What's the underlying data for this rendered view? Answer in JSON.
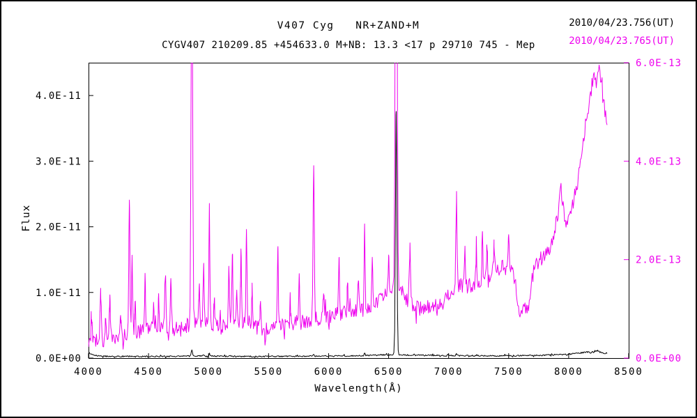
{
  "title_line1": "V407 Cyg   NR+ZAND+M",
  "title_line2": "CYGV407 210209.85 +454633.0 M+NB: 13.3 <17 p 29710 745 - Mep",
  "legend": {
    "obs1": {
      "label": "2010/04/23.756(UT)",
      "color": "#000000"
    },
    "obs2": {
      "label": "2010/04/23.765(UT)",
      "color": "#ee00ee"
    }
  },
  "axes": {
    "x": {
      "label": "Wavelength(Å)",
      "min": 4000,
      "max": 8500,
      "ticks": [
        4000,
        4500,
        5000,
        5500,
        6000,
        6500,
        7000,
        7500,
        8000,
        8500
      ],
      "tick_labels": [
        "4000",
        "4500",
        "5000",
        "5500",
        "6000",
        "6500",
        "7000",
        "7500",
        "8000",
        "8500"
      ]
    },
    "y_left": {
      "label": "Flux",
      "min": 0,
      "max": 4.5e-11,
      "color": "#000000",
      "ticks": [
        0,
        1e-11,
        2e-11,
        3e-11,
        4e-11
      ],
      "tick_labels": [
        "0.0E+00",
        "1.0E-11",
        "2.0E-11",
        "3.0E-11",
        "4.0E-11"
      ]
    },
    "y_right": {
      "min": 0,
      "max": 6e-13,
      "color": "#ee00ee",
      "ticks": [
        0,
        2e-13,
        4e-13,
        6e-13
      ],
      "tick_labels": [
        "0.0E+00",
        "2.0E-13",
        "4.0E-13",
        "6.0E-13"
      ]
    }
  },
  "chart_data": {
    "type": "line",
    "title": "V407 Cyg NR+ZAND+M",
    "xlabel": "Wavelength(Å)",
    "ylabel": "Flux",
    "x_range": [
      4000,
      8500
    ],
    "y_left_range": [
      0,
      4.5e-11
    ],
    "y_right_range": [
      0,
      6e-13
    ],
    "grid": false,
    "legend_position": "top-right",
    "series": [
      {
        "name": "2010/04/23.756(UT)",
        "color": "#000000",
        "axis": "left",
        "noise": 1e-13,
        "continuum": [
          [
            4000,
            9e-13
          ],
          [
            4030,
            5e-13
          ],
          [
            4080,
            3.5e-13
          ],
          [
            4150,
            2.8e-13
          ],
          [
            4300,
            2.5e-13
          ],
          [
            4500,
            2.5e-13
          ],
          [
            4700,
            2.8e-13
          ],
          [
            4900,
            3.2e-13
          ],
          [
            5100,
            2.8e-13
          ],
          [
            5400,
            2.5e-13
          ],
          [
            5700,
            2.7e-13
          ],
          [
            6000,
            3e-13
          ],
          [
            6200,
            3.5e-13
          ],
          [
            6400,
            4.5e-13
          ],
          [
            6500,
            5e-13
          ],
          [
            6620,
            5e-13
          ],
          [
            6700,
            4.5e-13
          ],
          [
            6900,
            4e-13
          ],
          [
            7100,
            3.8e-13
          ],
          [
            7300,
            3.5e-13
          ],
          [
            7500,
            3.5e-13
          ],
          [
            7700,
            4e-13
          ],
          [
            7900,
            5e-13
          ],
          [
            8000,
            6e-13
          ],
          [
            8100,
            8e-13
          ],
          [
            8150,
            9.5e-13
          ],
          [
            8200,
            8.5e-13
          ],
          [
            8250,
            9.5e-13
          ],
          [
            8300,
            7.5e-13
          ],
          [
            8320,
            7e-13
          ]
        ],
        "emission_lines": [
          [
            4861,
            1e-12,
            5
          ],
          [
            4959,
            2e-13,
            4
          ],
          [
            5007,
            4e-13,
            4
          ],
          [
            5876,
            3e-13,
            4
          ],
          [
            6300,
            3e-13,
            4
          ],
          [
            6563,
            3.7e-11,
            6
          ],
          [
            7065,
            2.5e-13,
            4
          ],
          [
            8230,
            3e-13,
            12
          ]
        ]
      },
      {
        "name": "2010/04/23.765(UT)",
        "color": "#ee00ee",
        "axis": "right",
        "noise": 1.5e-14,
        "continuum": [
          [
            4000,
            3e-14
          ],
          [
            4050,
            3.2e-14
          ],
          [
            4100,
            3.8e-14
          ],
          [
            4150,
            3.6e-14
          ],
          [
            4200,
            4.2e-14
          ],
          [
            4250,
            4.5e-14
          ],
          [
            4300,
            4.8e-14
          ],
          [
            4350,
            5e-14
          ],
          [
            4400,
            5.2e-14
          ],
          [
            4450,
            5.5e-14
          ],
          [
            4500,
            5.8e-14
          ],
          [
            4550,
            6e-14
          ],
          [
            4600,
            6.2e-14
          ],
          [
            4650,
            6e-14
          ],
          [
            4700,
            5.8e-14
          ],
          [
            4750,
            6.2e-14
          ],
          [
            4800,
            6.5e-14
          ],
          [
            4850,
            7e-14
          ],
          [
            4900,
            7.2e-14
          ],
          [
            4950,
            6.8e-14
          ],
          [
            5000,
            7e-14
          ],
          [
            5050,
            6.5e-14
          ],
          [
            5100,
            6.2e-14
          ],
          [
            5150,
            6.5e-14
          ],
          [
            5200,
            7e-14
          ],
          [
            5250,
            7.2e-14
          ],
          [
            5300,
            7.5e-14
          ],
          [
            5350,
            7e-14
          ],
          [
            5400,
            6.2e-14
          ],
          [
            5450,
            6e-14
          ],
          [
            5500,
            6e-14
          ],
          [
            5550,
            6.2e-14
          ],
          [
            5600,
            6.5e-14
          ],
          [
            5650,
            6.8e-14
          ],
          [
            5700,
            7e-14
          ],
          [
            5750,
            7.2e-14
          ],
          [
            5800,
            7.5e-14
          ],
          [
            5850,
            7.8e-14
          ],
          [
            5900,
            8e-14
          ],
          [
            5950,
            8.2e-14
          ],
          [
            6000,
            8.5e-14
          ],
          [
            6050,
            8.8e-14
          ],
          [
            6100,
            9e-14
          ],
          [
            6150,
            9.2e-14
          ],
          [
            6200,
            9.5e-14
          ],
          [
            6250,
            1e-13
          ],
          [
            6300,
            1.02e-13
          ],
          [
            6350,
            1.05e-13
          ],
          [
            6400,
            1.15e-13
          ],
          [
            6450,
            1.25e-13
          ],
          [
            6500,
            1.35e-13
          ],
          [
            6530,
            1.45e-13
          ],
          [
            6600,
            1.4e-13
          ],
          [
            6650,
            1.2e-13
          ],
          [
            6700,
            1.05e-13
          ],
          [
            6750,
            1e-13
          ],
          [
            6800,
            1e-13
          ],
          [
            6850,
            1.05e-13
          ],
          [
            6900,
            1.1e-13
          ],
          [
            6950,
            1.2e-13
          ],
          [
            7000,
            1.3e-13
          ],
          [
            7050,
            1.4e-13
          ],
          [
            7100,
            1.5e-13
          ],
          [
            7150,
            1.45e-13
          ],
          [
            7200,
            1.5e-13
          ],
          [
            7250,
            1.55e-13
          ],
          [
            7300,
            1.6e-13
          ],
          [
            7350,
            1.7e-13
          ],
          [
            7400,
            1.8e-13
          ],
          [
            7450,
            1.85e-13
          ],
          [
            7500,
            1.8e-13
          ],
          [
            7540,
            1.7e-13
          ],
          [
            7570,
            1.3e-13
          ],
          [
            7600,
            7.8e-14
          ],
          [
            7630,
            1.1e-13
          ],
          [
            7660,
            8.5e-14
          ],
          [
            7690,
            1.5e-13
          ],
          [
            7720,
            1.9e-13
          ],
          [
            7760,
            2e-13
          ],
          [
            7800,
            2.1e-13
          ],
          [
            7840,
            2.2e-13
          ],
          [
            7880,
            2.45e-13
          ],
          [
            7910,
            2.9e-13
          ],
          [
            7930,
            3.35e-13
          ],
          [
            7950,
            3.1e-13
          ],
          [
            7970,
            2.75e-13
          ],
          [
            8000,
            2.9e-13
          ],
          [
            8030,
            3.1e-13
          ],
          [
            8060,
            3.4e-13
          ],
          [
            8090,
            3.8e-13
          ],
          [
            8120,
            4.3e-13
          ],
          [
            8150,
            4.8e-13
          ],
          [
            8180,
            5.35e-13
          ],
          [
            8210,
            5.8e-13
          ],
          [
            8230,
            5.55e-13
          ],
          [
            8250,
            5.9e-13
          ],
          [
            8270,
            5.7e-13
          ],
          [
            8290,
            5.35e-13
          ],
          [
            8310,
            4.85e-13
          ],
          [
            8320,
            4.6e-13
          ]
        ],
        "emission_lines": [
          [
            4026,
            5e-14,
            4
          ],
          [
            4101,
            9e-14,
            5
          ],
          [
            4144,
            5e-14,
            4
          ],
          [
            4178,
            8e-14,
            4
          ],
          [
            4267,
            4.5e-14,
            4
          ],
          [
            4340,
            2.6e-13,
            5
          ],
          [
            4363,
            1.6e-13,
            4
          ],
          [
            4388,
            6e-14,
            4
          ],
          [
            4471,
            1.05e-13,
            4
          ],
          [
            4542,
            5e-14,
            4
          ],
          [
            4584,
            5.5e-14,
            4
          ],
          [
            4640,
            1.05e-13,
            6
          ],
          [
            4686,
            1e-13,
            5
          ],
          [
            4861,
            9e-13,
            6
          ],
          [
            4922,
            7.5e-14,
            4
          ],
          [
            4959,
            1.35e-13,
            4
          ],
          [
            5007,
            2.3e-13,
            4
          ],
          [
            5048,
            5.5e-14,
            4
          ],
          [
            5169,
            1.25e-13,
            4
          ],
          [
            5198,
            1.5e-13,
            4
          ],
          [
            5235,
            6e-14,
            4
          ],
          [
            5270,
            1.35e-13,
            4
          ],
          [
            5316,
            2e-13,
            4
          ],
          [
            5363,
            7.5e-14,
            4
          ],
          [
            5433,
            5e-14,
            4
          ],
          [
            5577,
            1.55e-13,
            4
          ],
          [
            5680,
            5e-14,
            4
          ],
          [
            5755,
            1.05e-13,
            4
          ],
          [
            5876,
            3.1e-13,
            5
          ],
          [
            5958,
            5e-14,
            4
          ],
          [
            6087,
            1.25e-13,
            4
          ],
          [
            6158,
            6.5e-14,
            4
          ],
          [
            6248,
            6e-14,
            4
          ],
          [
            6300,
            1.65e-13,
            4
          ],
          [
            6364,
            1.05e-13,
            4
          ],
          [
            6500,
            6e-14,
            5
          ],
          [
            6563,
            1.2e-12,
            7
          ],
          [
            6678,
            1.25e-13,
            4
          ],
          [
            7065,
            1.85e-13,
            5
          ],
          [
            7136,
            8e-14,
            4
          ],
          [
            7231,
            6e-14,
            4
          ],
          [
            7281,
            9.5e-14,
            4
          ],
          [
            7320,
            6.5e-14,
            4
          ],
          [
            7378,
            5.5e-14,
            4
          ],
          [
            7500,
            6e-14,
            5
          ]
        ]
      }
    ]
  }
}
